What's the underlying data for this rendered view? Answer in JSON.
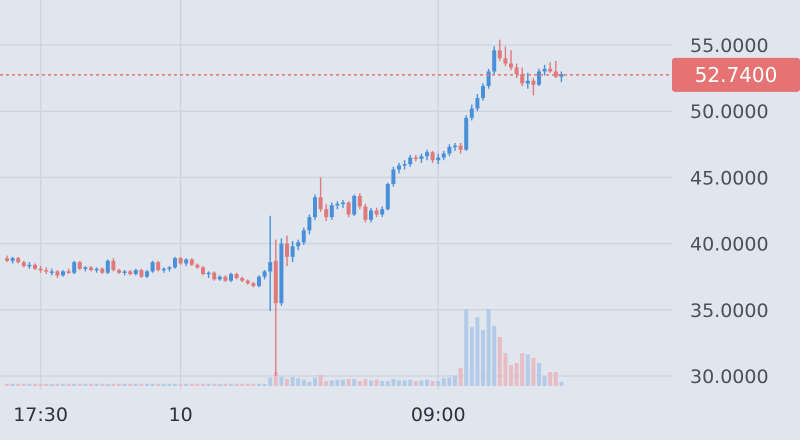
{
  "chart_data": {
    "type": "candlestick",
    "y_ticks": [
      "55.0000",
      "50.0000",
      "45.0000",
      "40.0000",
      "35.0000",
      "30.0000"
    ],
    "y_tick_values": [
      55,
      50,
      45,
      40,
      35,
      30
    ],
    "x_ticks": [
      "17:30",
      "10",
      "09:00"
    ],
    "x_tick_index": [
      6,
      31,
      77
    ],
    "current_price": {
      "value": 52.74,
      "label": "52.7400"
    },
    "colors": {
      "up": "#4a90d9",
      "down": "#e07a7a",
      "up_vol": "#b3cbe8",
      "down_vol": "#e8bcc4",
      "grid": "#cfd5df",
      "badge": "#e57373",
      "background": "#e1e6ee"
    },
    "candles": [
      [
        38.9,
        39.1,
        38.6,
        38.7
      ],
      [
        38.7,
        39.0,
        38.5,
        38.9
      ],
      [
        38.9,
        39.0,
        38.5,
        38.6
      ],
      [
        38.6,
        38.7,
        38.2,
        38.3
      ],
      [
        38.3,
        38.6,
        38.1,
        38.4
      ],
      [
        38.4,
        38.5,
        38.0,
        38.1
      ],
      [
        38.1,
        38.3,
        37.8,
        38.0
      ],
      [
        38.0,
        38.2,
        37.7,
        37.9
      ],
      [
        37.9,
        38.1,
        37.6,
        37.9
      ],
      [
        37.9,
        38.0,
        37.4,
        37.6
      ],
      [
        37.6,
        38.0,
        37.5,
        37.9
      ],
      [
        37.9,
        38.1,
        37.7,
        37.8
      ],
      [
        37.8,
        38.7,
        37.7,
        38.6
      ],
      [
        38.6,
        38.7,
        38.0,
        38.1
      ],
      [
        38.1,
        38.3,
        37.9,
        38.2
      ],
      [
        38.2,
        38.3,
        37.9,
        38.0
      ],
      [
        38.0,
        38.2,
        37.8,
        38.1
      ],
      [
        38.1,
        38.2,
        37.7,
        37.8
      ],
      [
        37.8,
        38.8,
        37.7,
        38.7
      ],
      [
        38.7,
        38.9,
        37.9,
        38.0
      ],
      [
        38.0,
        38.1,
        37.7,
        37.8
      ],
      [
        37.8,
        38.0,
        37.6,
        37.9
      ],
      [
        37.9,
        38.0,
        37.6,
        37.7
      ],
      [
        37.7,
        38.1,
        37.6,
        38.0
      ],
      [
        38.0,
        38.1,
        37.4,
        37.5
      ],
      [
        37.5,
        38.0,
        37.4,
        37.9
      ],
      [
        37.9,
        38.7,
        37.8,
        38.6
      ],
      [
        38.6,
        38.7,
        37.9,
        38.0
      ],
      [
        38.0,
        38.2,
        37.8,
        38.1
      ],
      [
        38.1,
        38.3,
        37.9,
        38.2
      ],
      [
        38.2,
        39.0,
        38.1,
        38.9
      ],
      [
        38.9,
        39.0,
        38.4,
        38.5
      ],
      [
        38.5,
        38.9,
        38.3,
        38.8
      ],
      [
        38.8,
        38.9,
        38.3,
        38.4
      ],
      [
        38.4,
        38.5,
        38.1,
        38.2
      ],
      [
        38.2,
        38.3,
        37.6,
        37.7
      ],
      [
        37.7,
        37.9,
        37.4,
        37.8
      ],
      [
        37.8,
        37.9,
        37.2,
        37.3
      ],
      [
        37.3,
        37.6,
        37.2,
        37.5
      ],
      [
        37.5,
        37.6,
        37.1,
        37.2
      ],
      [
        37.2,
        37.8,
        37.1,
        37.7
      ],
      [
        37.7,
        37.8,
        37.3,
        37.4
      ],
      [
        37.4,
        37.5,
        37.1,
        37.2
      ],
      [
        37.2,
        37.3,
        36.9,
        37.0
      ],
      [
        37.0,
        37.1,
        36.7,
        36.8
      ],
      [
        36.8,
        37.6,
        36.7,
        37.5
      ],
      [
        37.5,
        38.0,
        37.3,
        37.9
      ],
      [
        37.9,
        42.1,
        34.9,
        38.6
      ],
      [
        38.7,
        40.3,
        30.0,
        35.5
      ],
      [
        35.5,
        40.4,
        35.3,
        40.0
      ],
      [
        40.0,
        40.6,
        38.3,
        39.0
      ],
      [
        39.0,
        40.2,
        38.6,
        39.8
      ],
      [
        39.8,
        40.3,
        39.5,
        40.1
      ],
      [
        40.1,
        41.2,
        39.9,
        41.0
      ],
      [
        41.0,
        42.2,
        40.7,
        42.0
      ],
      [
        42.0,
        43.7,
        41.8,
        43.5
      ],
      [
        43.5,
        45.0,
        42.4,
        42.6
      ],
      [
        42.6,
        43.0,
        41.7,
        42.0
      ],
      [
        42.0,
        43.1,
        41.8,
        42.9
      ],
      [
        42.9,
        43.2,
        42.6,
        43.0
      ],
      [
        43.0,
        43.3,
        42.7,
        43.1
      ],
      [
        43.1,
        43.2,
        42.0,
        42.2
      ],
      [
        42.2,
        43.7,
        42.1,
        43.6
      ],
      [
        43.6,
        43.8,
        42.6,
        42.8
      ],
      [
        42.8,
        43.0,
        41.6,
        41.8
      ],
      [
        41.8,
        42.7,
        41.6,
        42.5
      ],
      [
        42.5,
        42.7,
        42.0,
        42.2
      ],
      [
        42.2,
        42.8,
        42.0,
        42.6
      ],
      [
        42.6,
        44.6,
        42.5,
        44.5
      ],
      [
        44.5,
        45.8,
        44.3,
        45.6
      ],
      [
        45.6,
        46.1,
        45.3,
        45.9
      ],
      [
        45.9,
        46.3,
        45.6,
        46.0
      ],
      [
        46.0,
        46.7,
        45.8,
        46.5
      ],
      [
        46.5,
        46.7,
        46.2,
        46.4
      ],
      [
        46.4,
        46.8,
        46.1,
        46.6
      ],
      [
        46.6,
        47.1,
        46.3,
        46.9
      ],
      [
        46.9,
        47.0,
        46.1,
        46.3
      ],
      [
        46.3,
        46.8,
        46.0,
        46.5
      ],
      [
        46.5,
        47.0,
        46.3,
        46.8
      ],
      [
        46.8,
        47.5,
        46.6,
        47.3
      ],
      [
        47.3,
        47.6,
        47.0,
        47.4
      ],
      [
        47.4,
        47.6,
        46.8,
        47.1
      ],
      [
        47.1,
        49.7,
        47.0,
        49.5
      ],
      [
        49.5,
        50.5,
        49.3,
        50.2
      ],
      [
        50.2,
        51.3,
        50.0,
        51.0
      ],
      [
        51.0,
        52.1,
        50.8,
        51.9
      ],
      [
        51.9,
        53.2,
        51.7,
        53.0
      ],
      [
        53.0,
        54.9,
        52.8,
        54.6
      ],
      [
        54.6,
        55.4,
        53.8,
        54.0
      ],
      [
        54.0,
        54.9,
        53.4,
        53.6
      ],
      [
        53.6,
        54.6,
        53.1,
        53.3
      ],
      [
        53.3,
        53.6,
        52.5,
        52.8
      ],
      [
        52.8,
        53.3,
        51.9,
        52.1
      ],
      [
        52.1,
        52.9,
        51.7,
        52.3
      ],
      [
        52.3,
        52.5,
        51.2,
        52.0
      ],
      [
        52.0,
        53.2,
        51.9,
        53.0
      ],
      [
        53.0,
        53.5,
        52.7,
        53.2
      ],
      [
        53.2,
        53.7,
        52.9,
        53.0
      ],
      [
        53.0,
        53.8,
        52.5,
        52.6
      ],
      [
        52.6,
        53.0,
        52.2,
        52.8
      ]
    ],
    "volumes": [
      0.3,
      0.3,
      0.3,
      0.3,
      0.3,
      0.3,
      0.3,
      0.3,
      0.3,
      0.3,
      0.3,
      0.3,
      0.3,
      0.3,
      0.3,
      0.3,
      0.3,
      0.3,
      0.3,
      0.3,
      0.3,
      0.3,
      0.3,
      0.3,
      0.3,
      0.3,
      0.3,
      0.3,
      0.3,
      0.3,
      0.3,
      0.3,
      0.3,
      0.3,
      0.3,
      0.3,
      0.3,
      0.3,
      0.3,
      0.3,
      0.3,
      0.3,
      0.3,
      0.3,
      0.3,
      0.3,
      0.3,
      1.2,
      2.0,
      1.3,
      1.0,
      1.3,
      1.1,
      0.9,
      0.6,
      1.2,
      1.6,
      0.7,
      0.8,
      0.9,
      0.9,
      1.0,
      1.0,
      0.7,
      1.0,
      0.8,
      0.9,
      0.7,
      0.7,
      1.0,
      0.8,
      0.8,
      0.9,
      0.7,
      0.8,
      0.9,
      0.7,
      0.7,
      1.1,
      1.2,
      1.5,
      2.6,
      11.0,
      8.4,
      9.8,
      8.0,
      11.0,
      8.6,
      7.0,
      4.7,
      3.0,
      3.3,
      4.7,
      4.5,
      4.0,
      3.3,
      1.4,
      2.0,
      2.0,
      0.6
    ]
  }
}
